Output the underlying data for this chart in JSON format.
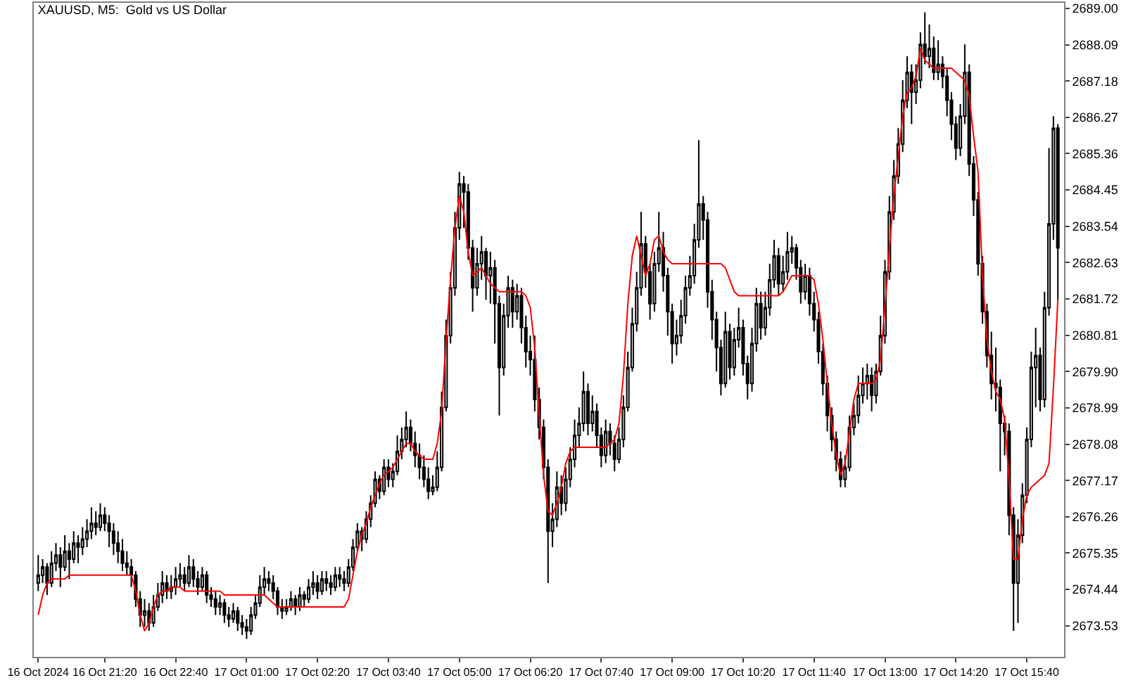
{
  "chart_data": {
    "type": "candlestick",
    "title": "XAUUSD, M5:  Gold vs US Dollar",
    "categories": [
      "16 Oct 2024",
      null,
      null,
      null,
      null,
      null,
      null,
      null,
      null,
      null,
      null,
      null,
      null,
      null,
      null,
      "16 Oct 21:20",
      null,
      null,
      null,
      null,
      null,
      null,
      null,
      null,
      null,
      null,
      null,
      null,
      null,
      null,
      null,
      "16 Oct 22:40",
      null,
      null,
      null,
      null,
      null,
      null,
      null,
      null,
      null,
      null,
      null,
      null,
      null,
      null,
      null,
      "17 Oct 01:00",
      null,
      null,
      null,
      null,
      null,
      null,
      null,
      null,
      null,
      null,
      null,
      null,
      null,
      null,
      null,
      "17 Oct 02:20",
      null,
      null,
      null,
      null,
      null,
      null,
      null,
      null,
      null,
      null,
      null,
      null,
      null,
      null,
      null,
      "17 Oct 03:40",
      null,
      null,
      null,
      null,
      null,
      null,
      null,
      null,
      null,
      null,
      null,
      null,
      null,
      null,
      null,
      "17 Oct 05:00",
      null,
      null,
      null,
      null,
      null,
      null,
      null,
      null,
      null,
      null,
      null,
      null,
      null,
      null,
      null,
      "17 Oct 06:20",
      null,
      null,
      null,
      null,
      null,
      null,
      null,
      null,
      null,
      null,
      null,
      null,
      null,
      null,
      null,
      "17 Oct 07:40",
      null,
      null,
      null,
      null,
      null,
      null,
      null,
      null,
      null,
      null,
      null,
      null,
      null,
      null,
      null,
      "17 Oct 09:00",
      null,
      null,
      null,
      null,
      null,
      null,
      null,
      null,
      null,
      null,
      null,
      null,
      null,
      null,
      null,
      "17 Oct 10:20",
      null,
      null,
      null,
      null,
      null,
      null,
      null,
      null,
      null,
      null,
      null,
      null,
      null,
      null,
      null,
      "17 Oct 11:40",
      null,
      null,
      null,
      null,
      null,
      null,
      null,
      null,
      null,
      null,
      null,
      null,
      null,
      null,
      null,
      "17 Oct 13:00",
      null,
      null,
      null,
      null,
      null,
      null,
      null,
      null,
      null,
      null,
      null,
      null,
      null,
      null,
      null,
      "17 Oct 14:20",
      null,
      null,
      null,
      null,
      null,
      null,
      null,
      null,
      null,
      null,
      null,
      null,
      null,
      null,
      null,
      "17 Oct 15:40",
      null,
      null,
      null,
      null,
      null,
      null,
      null
    ],
    "ohlc": [
      [
        2674.6,
        2675.3,
        2674.4,
        2674.8
      ],
      [
        2674.8,
        2675.2,
        2674.6,
        2675.0
      ],
      [
        2675.0,
        2675.1,
        2674.3,
        2674.6
      ],
      [
        2674.6,
        2675.4,
        2674.5,
        2675.1
      ],
      [
        2675.1,
        2675.6,
        2674.9,
        2675.3
      ],
      [
        2675.3,
        2675.5,
        2674.5,
        2675.0
      ],
      [
        2675.0,
        2675.8,
        2674.9,
        2675.4
      ],
      [
        2675.4,
        2675.6,
        2674.7,
        2675.2
      ],
      [
        2675.2,
        2675.9,
        2675.1,
        2675.6
      ],
      [
        2675.6,
        2675.8,
        2675.1,
        2675.5
      ],
      [
        2675.5,
        2676.0,
        2675.3,
        2675.7
      ],
      [
        2675.7,
        2676.2,
        2675.5,
        2675.9
      ],
      [
        2675.9,
        2676.5,
        2675.7,
        2676.1
      ],
      [
        2676.1,
        2676.4,
        2675.8,
        2676.0
      ],
      [
        2676.0,
        2676.6,
        2675.9,
        2676.3
      ],
      [
        2676.3,
        2676.5,
        2675.9,
        2676.1
      ],
      [
        2676.1,
        2676.3,
        2675.5,
        2675.9
      ],
      [
        2675.9,
        2676.1,
        2675.3,
        2675.6
      ],
      [
        2675.6,
        2675.9,
        2675.1,
        2675.4
      ],
      [
        2675.4,
        2675.7,
        2674.9,
        2675.1
      ],
      [
        2675.1,
        2675.4,
        2674.8,
        2675.0
      ],
      [
        2675.0,
        2675.2,
        2674.5,
        2674.8
      ],
      [
        2674.8,
        2674.9,
        2674.0,
        2674.2
      ],
      [
        2674.2,
        2674.4,
        2673.5,
        2673.8
      ],
      [
        2673.8,
        2674.2,
        2673.5,
        2673.9
      ],
      [
        2673.9,
        2674.1,
        2673.4,
        2673.6
      ],
      [
        2673.6,
        2674.3,
        2673.5,
        2674.0
      ],
      [
        2674.0,
        2674.6,
        2673.9,
        2674.3
      ],
      [
        2674.3,
        2674.9,
        2674.1,
        2674.6
      ],
      [
        2674.6,
        2674.8,
        2674.2,
        2674.4
      ],
      [
        2674.4,
        2674.8,
        2674.2,
        2674.5
      ],
      [
        2674.5,
        2675.0,
        2674.3,
        2674.7
      ],
      [
        2674.7,
        2675.1,
        2674.5,
        2674.8
      ],
      [
        2674.8,
        2675.0,
        2674.4,
        2674.6
      ],
      [
        2674.6,
        2675.3,
        2674.5,
        2675.0
      ],
      [
        2675.0,
        2675.2,
        2674.5,
        2674.7
      ],
      [
        2674.7,
        2674.9,
        2674.3,
        2674.5
      ],
      [
        2674.5,
        2675.0,
        2674.4,
        2674.8
      ],
      [
        2674.8,
        2674.9,
        2674.1,
        2674.3
      ],
      [
        2674.3,
        2674.5,
        2674.0,
        2674.2
      ],
      [
        2674.2,
        2674.4,
        2673.8,
        2674.0
      ],
      [
        2674.0,
        2674.3,
        2673.8,
        2674.1
      ],
      [
        2674.1,
        2674.2,
        2673.6,
        2673.8
      ],
      [
        2673.8,
        2674.0,
        2673.5,
        2673.7
      ],
      [
        2673.7,
        2674.1,
        2673.6,
        2673.9
      ],
      [
        2673.9,
        2674.0,
        2673.4,
        2673.6
      ],
      [
        2673.6,
        2673.8,
        2673.3,
        2673.5
      ],
      [
        2673.5,
        2673.7,
        2673.2,
        2673.4
      ],
      [
        2673.4,
        2674.0,
        2673.3,
        2673.8
      ],
      [
        2673.8,
        2674.3,
        2673.7,
        2674.1
      ],
      [
        2674.1,
        2674.8,
        2674.0,
        2674.5
      ],
      [
        2674.5,
        2675.0,
        2674.3,
        2674.7
      ],
      [
        2674.7,
        2674.9,
        2674.4,
        2674.6
      ],
      [
        2674.6,
        2674.8,
        2674.2,
        2674.4
      ],
      [
        2674.4,
        2674.5,
        2673.8,
        2674.0
      ],
      [
        2674.0,
        2674.2,
        2673.7,
        2673.9
      ],
      [
        2673.9,
        2674.2,
        2673.8,
        2674.0
      ],
      [
        2674.0,
        2674.4,
        2673.9,
        2674.2
      ],
      [
        2674.2,
        2674.3,
        2673.8,
        2674.0
      ],
      [
        2674.0,
        2674.5,
        2673.9,
        2674.3
      ],
      [
        2674.3,
        2674.4,
        2674.0,
        2674.2
      ],
      [
        2674.2,
        2674.7,
        2674.1,
        2674.5
      ],
      [
        2674.5,
        2674.9,
        2674.3,
        2674.6
      ],
      [
        2674.6,
        2674.8,
        2674.2,
        2674.4
      ],
      [
        2674.4,
        2674.9,
        2674.3,
        2674.7
      ],
      [
        2674.7,
        2674.9,
        2674.4,
        2674.6
      ],
      [
        2674.6,
        2674.8,
        2674.3,
        2674.5
      ],
      [
        2674.5,
        2675.0,
        2674.4,
        2674.8
      ],
      [
        2674.8,
        2675.0,
        2674.5,
        2674.7
      ],
      [
        2674.7,
        2674.9,
        2674.4,
        2674.6
      ],
      [
        2674.6,
        2675.2,
        2674.5,
        2675.0
      ],
      [
        2675.0,
        2675.7,
        2674.9,
        2675.5
      ],
      [
        2675.5,
        2676.1,
        2675.4,
        2675.9
      ],
      [
        2675.9,
        2676.0,
        2675.4,
        2675.7
      ],
      [
        2675.7,
        2676.4,
        2675.6,
        2676.2
      ],
      [
        2676.2,
        2676.8,
        2676.0,
        2676.6
      ],
      [
        2676.6,
        2677.4,
        2676.5,
        2677.2
      ],
      [
        2677.2,
        2677.3,
        2676.7,
        2676.9
      ],
      [
        2676.9,
        2677.7,
        2676.8,
        2677.5
      ],
      [
        2677.5,
        2677.7,
        2677.0,
        2677.2
      ],
      [
        2677.2,
        2677.6,
        2677.0,
        2677.4
      ],
      [
        2677.4,
        2678.3,
        2677.3,
        2677.9
      ],
      [
        2677.9,
        2678.5,
        2677.7,
        2678.2
      ],
      [
        2678.2,
        2678.9,
        2678.0,
        2678.5
      ],
      [
        2678.5,
        2678.7,
        2677.9,
        2678.1
      ],
      [
        2678.1,
        2678.4,
        2677.5,
        2677.8
      ],
      [
        2677.8,
        2678.1,
        2677.2,
        2677.5
      ],
      [
        2677.5,
        2677.8,
        2677.0,
        2677.2
      ],
      [
        2677.2,
        2677.5,
        2676.7,
        2676.9
      ],
      [
        2676.9,
        2677.3,
        2676.8,
        2677.0
      ],
      [
        2677.0,
        2677.9,
        2676.9,
        2677.5
      ],
      [
        2677.5,
        2679.4,
        2677.4,
        2679.0
      ],
      [
        2679.0,
        2681.2,
        2678.9,
        2680.8
      ],
      [
        2680.8,
        2682.4,
        2680.6,
        2682.0
      ],
      [
        2682.0,
        2683.9,
        2681.8,
        2683.5
      ],
      [
        2683.5,
        2684.9,
        2683.2,
        2684.6
      ],
      [
        2684.6,
        2684.8,
        2683.5,
        2684.4
      ],
      [
        2684.4,
        2684.6,
        2682.7,
        2683.0
      ],
      [
        2683.0,
        2683.2,
        2681.4,
        2682.0
      ],
      [
        2682.0,
        2683.0,
        2681.8,
        2682.6
      ],
      [
        2682.6,
        2683.3,
        2682.2,
        2682.9
      ],
      [
        2682.9,
        2683.0,
        2681.7,
        2682.3
      ],
      [
        2682.3,
        2682.9,
        2681.6,
        2682.5
      ],
      [
        2682.5,
        2682.7,
        2680.6,
        2681.6
      ],
      [
        2681.6,
        2681.8,
        2678.8,
        2680.0
      ],
      [
        2680.0,
        2681.6,
        2679.8,
        2681.3
      ],
      [
        2681.3,
        2682.3,
        2681.0,
        2682.0
      ],
      [
        2682.0,
        2682.2,
        2681.0,
        2681.4
      ],
      [
        2681.4,
        2682.1,
        2681.2,
        2681.8
      ],
      [
        2681.8,
        2682.0,
        2680.6,
        2681.0
      ],
      [
        2681.0,
        2681.3,
        2680.0,
        2680.4
      ],
      [
        2680.4,
        2680.8,
        2679.8,
        2680.2
      ],
      [
        2680.2,
        2680.8,
        2678.9,
        2679.2
      ],
      [
        2679.2,
        2679.5,
        2678.2,
        2678.5
      ],
      [
        2678.5,
        2678.7,
        2677.2,
        2677.5
      ],
      [
        2677.5,
        2677.7,
        2674.6,
        2675.9
      ],
      [
        2675.9,
        2676.6,
        2675.5,
        2676.2
      ],
      [
        2676.2,
        2677.4,
        2676.0,
        2677.0
      ],
      [
        2677.0,
        2677.3,
        2676.3,
        2676.6
      ],
      [
        2676.6,
        2677.5,
        2676.4,
        2677.2
      ],
      [
        2677.2,
        2678.0,
        2677.0,
        2677.7
      ],
      [
        2677.7,
        2678.7,
        2677.5,
        2678.3
      ],
      [
        2678.3,
        2679.0,
        2678.0,
        2678.6
      ],
      [
        2678.6,
        2679.9,
        2678.4,
        2679.4
      ],
      [
        2679.4,
        2679.6,
        2678.3,
        2678.6
      ],
      [
        2678.6,
        2679.3,
        2678.4,
        2678.9
      ],
      [
        2678.9,
        2679.1,
        2678.0,
        2678.3
      ],
      [
        2678.3,
        2678.5,
        2677.5,
        2677.8
      ],
      [
        2677.8,
        2678.7,
        2677.6,
        2678.4
      ],
      [
        2678.4,
        2678.6,
        2677.8,
        2678.1
      ],
      [
        2678.1,
        2678.3,
        2677.4,
        2677.7
      ],
      [
        2677.7,
        2678.5,
        2677.6,
        2678.2
      ],
      [
        2678.2,
        2679.3,
        2678.0,
        2679.0
      ],
      [
        2679.0,
        2680.4,
        2678.9,
        2680.0
      ],
      [
        2680.0,
        2681.5,
        2679.9,
        2681.1
      ],
      [
        2681.1,
        2682.4,
        2680.9,
        2682.0
      ],
      [
        2682.0,
        2683.9,
        2681.8,
        2683.1
      ],
      [
        2683.1,
        2683.3,
        2682.0,
        2682.4
      ],
      [
        2682.4,
        2682.6,
        2681.2,
        2681.6
      ],
      [
        2681.6,
        2682.9,
        2681.4,
        2682.6
      ],
      [
        2682.6,
        2683.9,
        2682.4,
        2683.0
      ],
      [
        2683.0,
        2683.4,
        2681.9,
        2682.3
      ],
      [
        2682.3,
        2682.5,
        2680.8,
        2681.4
      ],
      [
        2681.4,
        2681.6,
        2680.1,
        2680.6
      ],
      [
        2680.6,
        2681.2,
        2680.3,
        2680.8
      ],
      [
        2680.8,
        2681.7,
        2680.6,
        2681.3
      ],
      [
        2681.3,
        2682.3,
        2681.1,
        2682.0
      ],
      [
        2682.0,
        2682.8,
        2681.8,
        2682.3
      ],
      [
        2682.3,
        2683.6,
        2682.1,
        2683.2
      ],
      [
        2683.2,
        2685.7,
        2683.0,
        2684.1
      ],
      [
        2684.1,
        2684.3,
        2683.2,
        2683.7
      ],
      [
        2683.7,
        2683.9,
        2681.5,
        2681.9
      ],
      [
        2681.9,
        2682.2,
        2680.7,
        2681.2
      ],
      [
        2681.2,
        2681.4,
        2679.9,
        2680.5
      ],
      [
        2680.5,
        2680.7,
        2679.3,
        2679.6
      ],
      [
        2679.6,
        2681.4,
        2679.5,
        2680.9
      ],
      [
        2680.9,
        2681.1,
        2679.7,
        2680.0
      ],
      [
        2680.0,
        2681.0,
        2679.8,
        2680.7
      ],
      [
        2680.7,
        2681.5,
        2680.5,
        2681.0
      ],
      [
        2681.0,
        2681.2,
        2679.8,
        2680.1
      ],
      [
        2680.1,
        2680.3,
        2679.2,
        2679.6
      ],
      [
        2679.6,
        2681.0,
        2679.4,
        2680.6
      ],
      [
        2680.6,
        2682.0,
        2680.4,
        2681.6
      ],
      [
        2681.6,
        2681.9,
        2680.7,
        2681.0
      ],
      [
        2681.0,
        2681.9,
        2680.8,
        2681.5
      ],
      [
        2681.5,
        2682.6,
        2681.3,
        2682.2
      ],
      [
        2682.2,
        2683.2,
        2682.0,
        2682.8
      ],
      [
        2682.8,
        2683.0,
        2681.8,
        2682.1
      ],
      [
        2682.1,
        2682.8,
        2681.9,
        2682.4
      ],
      [
        2682.4,
        2683.4,
        2682.2,
        2682.9
      ],
      [
        2682.9,
        2683.3,
        2682.6,
        2683.0
      ],
      [
        2683.0,
        2683.1,
        2682.2,
        2682.5
      ],
      [
        2682.5,
        2682.7,
        2681.6,
        2681.9
      ],
      [
        2681.9,
        2682.6,
        2681.7,
        2682.3
      ],
      [
        2682.3,
        2682.5,
        2681.3,
        2681.6
      ],
      [
        2681.6,
        2681.9,
        2680.9,
        2681.2
      ],
      [
        2681.2,
        2681.4,
        2680.1,
        2680.4
      ],
      [
        2680.4,
        2680.6,
        2679.3,
        2679.6
      ],
      [
        2679.6,
        2679.8,
        2678.4,
        2678.8
      ],
      [
        2678.8,
        2679.0,
        2677.9,
        2678.2
      ],
      [
        2678.2,
        2678.4,
        2677.4,
        2677.7
      ],
      [
        2677.7,
        2677.9,
        2677.0,
        2677.2
      ],
      [
        2677.2,
        2677.8,
        2677.0,
        2677.5
      ],
      [
        2677.5,
        2678.8,
        2677.4,
        2678.5
      ],
      [
        2678.5,
        2679.1,
        2678.3,
        2678.8
      ],
      [
        2678.8,
        2679.8,
        2678.6,
        2679.3
      ],
      [
        2679.3,
        2680.0,
        2679.1,
        2679.6
      ],
      [
        2679.6,
        2680.1,
        2679.2,
        2679.8
      ],
      [
        2679.8,
        2680.0,
        2678.9,
        2679.3
      ],
      [
        2679.3,
        2680.1,
        2679.1,
        2679.9
      ],
      [
        2679.9,
        2681.3,
        2679.8,
        2680.8
      ],
      [
        2680.8,
        2682.7,
        2680.6,
        2682.4
      ],
      [
        2682.4,
        2684.3,
        2682.2,
        2683.9
      ],
      [
        2683.9,
        2685.2,
        2683.7,
        2684.8
      ],
      [
        2684.8,
        2686.0,
        2684.6,
        2685.6
      ],
      [
        2685.6,
        2687.2,
        2685.4,
        2686.7
      ],
      [
        2686.7,
        2687.8,
        2686.5,
        2687.4
      ],
      [
        2687.4,
        2687.6,
        2686.1,
        2686.9
      ],
      [
        2686.9,
        2687.6,
        2686.6,
        2687.2
      ],
      [
        2687.2,
        2688.4,
        2687.0,
        2688.1
      ],
      [
        2688.1,
        2688.9,
        2687.6,
        2687.8
      ],
      [
        2687.8,
        2688.6,
        2687.5,
        2688.0
      ],
      [
        2688.0,
        2688.3,
        2687.2,
        2687.4
      ],
      [
        2687.4,
        2688.2,
        2687.2,
        2687.6
      ],
      [
        2687.6,
        2687.8,
        2687.0,
        2687.3
      ],
      [
        2687.3,
        2687.5,
        2686.3,
        2686.7
      ],
      [
        2686.7,
        2686.9,
        2685.7,
        2686.1
      ],
      [
        2686.1,
        2686.3,
        2685.2,
        2685.5
      ],
      [
        2685.5,
        2686.6,
        2685.3,
        2686.3
      ],
      [
        2686.3,
        2688.1,
        2686.1,
        2687.4
      ],
      [
        2687.4,
        2687.6,
        2684.8,
        2685.1
      ],
      [
        2685.1,
        2685.3,
        2683.8,
        2684.2
      ],
      [
        2684.2,
        2684.4,
        2682.3,
        2682.6
      ],
      [
        2682.6,
        2682.8,
        2681.1,
        2681.4
      ],
      [
        2681.4,
        2681.6,
        2680.0,
        2680.3
      ],
      [
        2680.3,
        2680.9,
        2679.2,
        2679.6
      ],
      [
        2679.6,
        2680.5,
        2678.9,
        2679.5
      ],
      [
        2679.5,
        2679.7,
        2677.4,
        2678.6
      ],
      [
        2678.6,
        2678.8,
        2677.8,
        2678.4
      ],
      [
        2678.4,
        2678.6,
        2675.8,
        2676.3
      ],
      [
        2676.3,
        2676.5,
        2673.4,
        2674.6
      ],
      [
        2674.6,
        2676.2,
        2673.6,
        2675.8
      ],
      [
        2675.8,
        2677.1,
        2675.6,
        2676.8
      ],
      [
        2676.8,
        2678.5,
        2676.6,
        2678.2
      ],
      [
        2678.2,
        2680.4,
        2678.0,
        2680.0
      ],
      [
        2680.0,
        2681.0,
        2679.0,
        2680.3
      ],
      [
        2680.3,
        2680.5,
        2678.9,
        2679.2
      ],
      [
        2679.2,
        2681.9,
        2679.0,
        2681.5
      ],
      [
        2681.5,
        2685.5,
        2681.3,
        2683.6
      ],
      [
        2683.6,
        2686.3,
        2683.2,
        2686.0
      ],
      [
        2686.0,
        2686.1,
        2681.7,
        2683.0
      ]
    ],
    "series": [
      {
        "type": "line",
        "color": "#ff0000",
        "values": [
          2673.8,
          2674.3,
          2674.6,
          2674.7,
          2674.7,
          2674.7,
          2674.7,
          2674.8,
          2674.8,
          2674.8,
          2674.8,
          2674.8,
          2674.8,
          2674.8,
          2674.8,
          2674.8,
          2674.8,
          2674.8,
          2674.8,
          2674.8,
          2674.8,
          2674.8,
          2674.4,
          2673.8,
          2673.4,
          2673.6,
          2674.0,
          2674.3,
          2674.4,
          2674.4,
          2674.5,
          2674.5,
          2674.5,
          2674.4,
          2674.4,
          2674.4,
          2674.4,
          2674.4,
          2674.4,
          2674.4,
          2674.4,
          2674.4,
          2674.3,
          2674.3,
          2674.3,
          2674.3,
          2674.3,
          2674.3,
          2674.3,
          2674.3,
          2674.3,
          2674.3,
          2674.2,
          2674.1,
          2674.0,
          2674.0,
          2674.0,
          2674.0,
          2674.0,
          2674.0,
          2674.0,
          2674.0,
          2674.0,
          2674.0,
          2674.0,
          2674.0,
          2674.0,
          2674.0,
          2674.0,
          2674.0,
          2674.2,
          2674.8,
          2675.4,
          2675.8,
          2676.1,
          2676.5,
          2676.8,
          2677.1,
          2677.3,
          2677.4,
          2677.5,
          2677.7,
          2677.9,
          2678.1,
          2678.1,
          2677.9,
          2677.8,
          2677.7,
          2677.7,
          2677.7,
          2678.1,
          2678.9,
          2680.7,
          2682.2,
          2683.5,
          2684.3,
          2683.9,
          2682.9,
          2682.3,
          2682.4,
          2682.5,
          2682.3,
          2682.1,
          2682.0,
          2681.9,
          2681.9,
          2681.9,
          2681.9,
          2681.9,
          2681.9,
          2681.8,
          2681.5,
          2680.5,
          2678.8,
          2677.3,
          2676.4,
          2676.3,
          2676.6,
          2677.0,
          2677.6,
          2677.9,
          2678.0,
          2678.0,
          2678.0,
          2678.0,
          2678.0,
          2678.0,
          2678.0,
          2678.0,
          2678.1,
          2678.2,
          2678.6,
          2679.8,
          2681.6,
          2682.8,
          2683.3,
          2682.8,
          2682.3,
          2682.6,
          2683.2,
          2683.3,
          2682.9,
          2682.7,
          2682.6,
          2682.6,
          2682.6,
          2682.6,
          2682.6,
          2682.6,
          2682.6,
          2682.6,
          2682.6,
          2682.6,
          2682.6,
          2682.6,
          2682.5,
          2682.2,
          2681.9,
          2681.8,
          2681.8,
          2681.8,
          2681.8,
          2681.8,
          2681.8,
          2681.8,
          2681.8,
          2681.8,
          2681.8,
          2681.9,
          2682.1,
          2682.3,
          2682.3,
          2682.3,
          2682.3,
          2682.3,
          2682.2,
          2681.6,
          2680.7,
          2679.6,
          2678.6,
          2677.8,
          2677.3,
          2677.6,
          2678.4,
          2679.2,
          2679.6,
          2679.6,
          2679.6,
          2679.6,
          2679.7,
          2680.2,
          2681.5,
          2683.0,
          2684.3,
          2685.3,
          2686.3,
          2686.9,
          2687.0,
          2687.3,
          2688.0,
          2687.7,
          2687.6,
          2687.5,
          2687.5,
          2687.5,
          2687.5,
          2687.5,
          2687.4,
          2687.3,
          2687.2,
          2686.8,
          2685.8,
          2684.9,
          2682.3,
          2680.7,
          2679.9,
          2679.4,
          2679.2,
          2678.7,
          2677.2,
          2675.2,
          2675.2,
          2676.2,
          2676.8,
          2677.0,
          2677.1,
          2677.2,
          2677.3,
          2677.6,
          2679.5,
          2681.7
        ]
      }
    ],
    "ylim": [
      2672.75,
      2689.14
    ],
    "yticks": [
      {
        "value": 2689,
        "label": "2689.00"
      },
      2688.09,
      2687.18,
      2686.27,
      2685.36,
      2684.45,
      2683.54,
      2682.63,
      2681.72,
      2680.81,
      {
        "value": 2679.9,
        "label": "2679.90"
      },
      2678.99,
      2678.08,
      2677.17,
      2676.26,
      2675.35,
      2674.44,
      2673.53
    ],
    "grid": false
  }
}
